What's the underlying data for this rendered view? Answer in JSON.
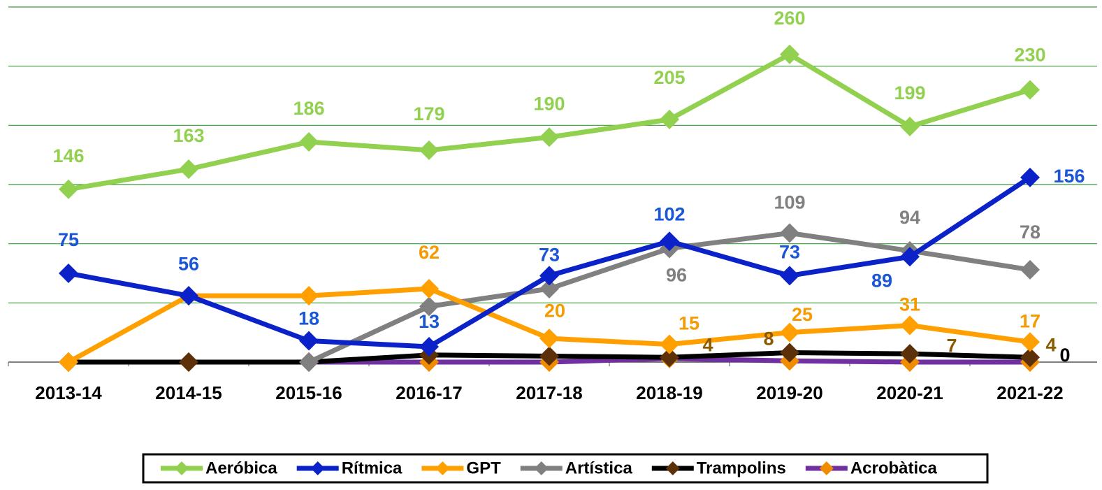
{
  "chart_data": {
    "type": "line",
    "categories": [
      "2013-14",
      "2014-15",
      "2015-16",
      "2016-17",
      "2017-18",
      "2018-19",
      "2019-20",
      "2020-21",
      "2021-22"
    ],
    "ylim": [
      0,
      300
    ],
    "yticks": [
      0,
      50,
      100,
      150,
      200,
      250,
      300
    ],
    "grid": true,
    "legend": "bottom",
    "series": [
      {
        "name": "Aeróbica",
        "color": "#92d050",
        "marker_color": "#92d050",
        "label_color": "#92d050",
        "values": [
          146,
          163,
          186,
          179,
          190,
          205,
          260,
          199,
          230
        ],
        "value_labels": [
          "146",
          "163",
          "186",
          "179",
          "190",
          "205",
          "260",
          "199",
          "230"
        ]
      },
      {
        "name": "Rítmica",
        "color": "#0a22c8",
        "marker_color": "#0a22c8",
        "label_color": "#1a56d6",
        "values": [
          75,
          56,
          18,
          13,
          73,
          102,
          73,
          89,
          156
        ],
        "value_labels": [
          "75",
          "56",
          "18",
          "13",
          "73",
          "102",
          "73",
          "89",
          "156"
        ]
      },
      {
        "name": "GPT",
        "color": "#ffa000",
        "marker_color": "#ffa000",
        "label_color": "#f59a00",
        "values": [
          0,
          56,
          56,
          62,
          20,
          15,
          25,
          31,
          17
        ],
        "value_labels": [
          null,
          null,
          null,
          "62",
          "20",
          "15",
          "25",
          "31",
          "17"
        ]
      },
      {
        "name": "Artística",
        "color": "#808080",
        "marker_color": "#808080",
        "label_color": "#808080",
        "values": [
          null,
          null,
          0,
          47,
          62,
          96,
          109,
          94,
          78
        ],
        "value_labels": [
          null,
          null,
          null,
          null,
          null,
          "96",
          "109",
          "94",
          "78"
        ]
      },
      {
        "name": "Trampolins",
        "color": "#000000",
        "marker_color": "#5c3008",
        "label_color": "#8b5a00",
        "values": [
          0,
          0,
          0,
          6,
          5,
          4,
          8,
          7,
          4
        ],
        "value_labels": [
          null,
          null,
          null,
          null,
          null,
          "4",
          "8",
          "7",
          "4"
        ]
      },
      {
        "name": "Acrobàtica",
        "color": "#7030a0",
        "marker_color": "#f08c00",
        "label_color": "#000000",
        "values": [
          0,
          0,
          0,
          0,
          0,
          3,
          1,
          0,
          0
        ],
        "value_labels": [
          null,
          null,
          null,
          null,
          null,
          null,
          null,
          null,
          "0"
        ]
      }
    ]
  }
}
